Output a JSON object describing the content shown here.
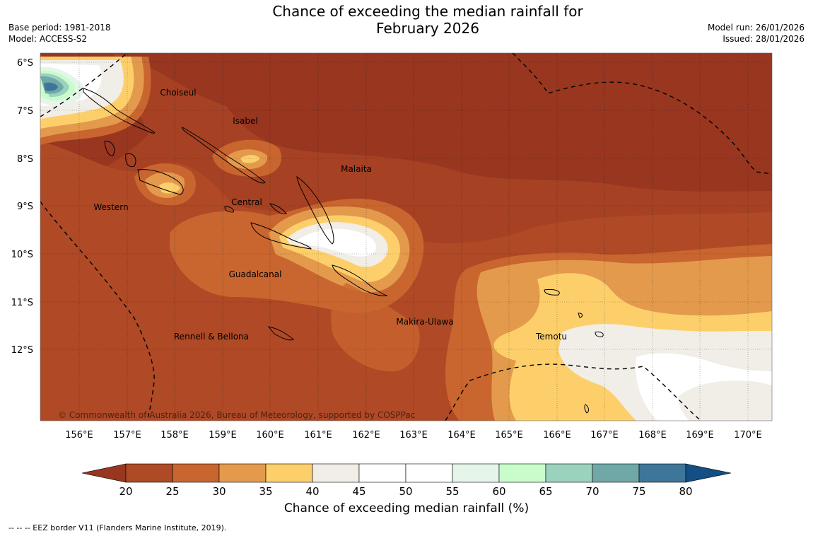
{
  "header": {
    "title_line1": "Chance of exceeding the median rainfall for",
    "title_line2": "February 2026",
    "base_period": "Base period: 1981-2018",
    "model": "Model: ACCESS-S2",
    "model_run": "Model run: 26/01/2026",
    "issued": "Issued: 28/01/2026"
  },
  "map": {
    "lat_labels": [
      "6°S",
      "7°S",
      "8°S",
      "9°S",
      "10°S",
      "11°S",
      "12°S"
    ],
    "lon_labels": [
      "156°E",
      "157°E",
      "158°E",
      "159°E",
      "160°E",
      "161°E",
      "162°E",
      "163°E",
      "164°E",
      "165°E",
      "166°E",
      "167°E",
      "168°E",
      "169°E",
      "170°E"
    ],
    "places": [
      "Choiseul",
      "Isabel",
      "Malaita",
      "Central",
      "Western",
      "Guadalcanal",
      "Makira-Ulawa",
      "Rennell & Bellona",
      "Temotu"
    ],
    "copyright": "© Commonwealth of Australia 2026, Bureau of Meteorology, supported by COSPPac"
  },
  "colorbar": {
    "ticks": [
      "20",
      "25",
      "30",
      "35",
      "40",
      "45",
      "50",
      "55",
      "60",
      "65",
      "70",
      "75",
      "80"
    ],
    "colors": [
      "#983620",
      "#af4a26",
      "#c9652f",
      "#e39a4c",
      "#fdcf6b",
      "#f1ede7",
      "#ffffff",
      "#ffffff",
      "#e6f5e9",
      "#c8fdcb",
      "#9bd2bd",
      "#70a8a8",
      "#3d7698",
      "#134e84"
    ],
    "label": "Chance of exceeding median rainfall (%)"
  },
  "footer": {
    "eez_note": "--  --  -- EEZ border V11 (Flanders Marine Institute, 2019)."
  }
}
